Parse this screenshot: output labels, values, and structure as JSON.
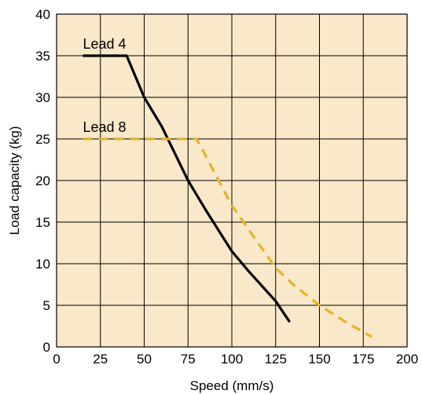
{
  "chart_data": {
    "type": "line",
    "title": "",
    "xlabel": "Speed (mm/s)",
    "ylabel": "Load capacity (kg)",
    "xlim": [
      0,
      200
    ],
    "ylim": [
      0,
      40
    ],
    "xticks": [
      0,
      25,
      50,
      75,
      100,
      125,
      150,
      175,
      200
    ],
    "yticks": [
      0,
      5,
      10,
      15,
      20,
      25,
      30,
      35,
      40
    ],
    "grid": true,
    "legend": "none",
    "background_color": "#f9e8c9",
    "series": [
      {
        "name": "Lead 4",
        "color": "#000000",
        "style": "solid",
        "x": [
          15,
          40,
          50,
          60,
          75,
          85,
          100,
          110,
          125,
          133
        ],
        "y": [
          35,
          35,
          30,
          26.5,
          20,
          16.5,
          11.5,
          9,
          5.5,
          3
        ]
      },
      {
        "name": "Lead 8",
        "color": "#e6b227",
        "style": "dashed",
        "x": [
          15,
          80,
          90,
          100,
          115,
          125,
          135,
          150,
          165,
          180
        ],
        "y": [
          25,
          25,
          21,
          17,
          12.5,
          9.5,
          7.5,
          5,
          3,
          1.2
        ]
      }
    ]
  }
}
